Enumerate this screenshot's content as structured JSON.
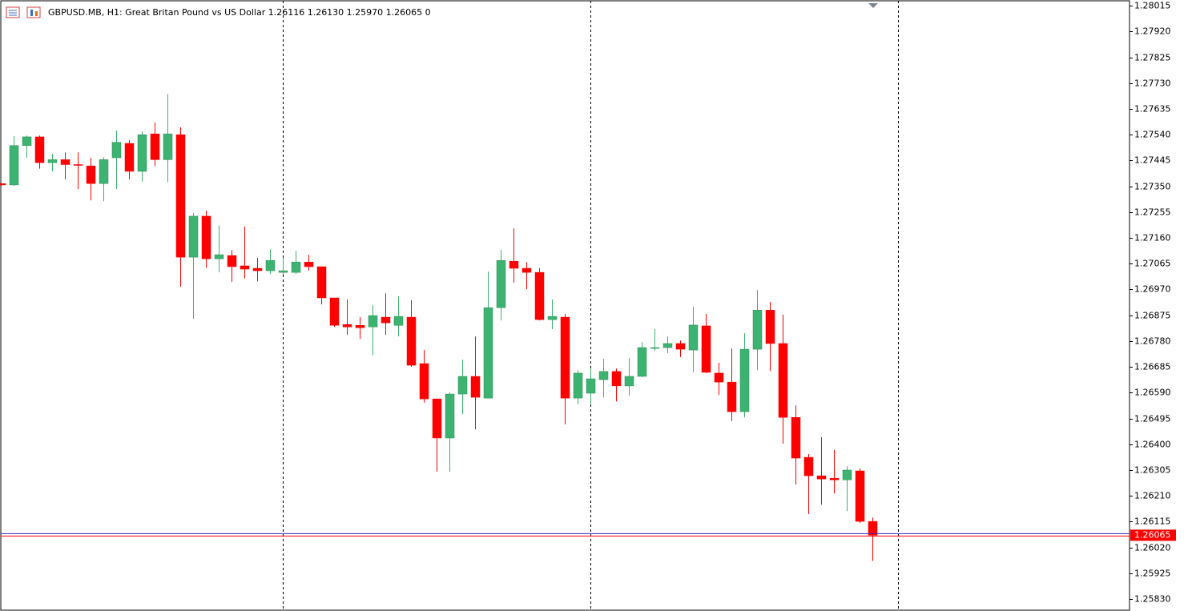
{
  "chart_data": {
    "type": "candlestick",
    "title": "GBPUSD.MB, H1:  Great Britan Pound vs US Dollar  1.26116 1.26130 1.25970 1.26065  0",
    "bull_color": "#3cb371",
    "bear_color": "#ff0000",
    "ylim": [
      1.25786,
      1.28036
    ],
    "yticks": [
      1.28015,
      {
        "value": 1.2792,
        "label": "1.27920"
      },
      1.27825,
      {
        "value": 1.2773,
        "label": "1.27730"
      },
      1.27635,
      {
        "value": 1.2754,
        "label": "1.27540"
      },
      1.27445,
      {
        "value": 1.2735,
        "label": "1.27350"
      },
      1.27255,
      {
        "value": 1.2716,
        "label": "1.27160"
      },
      1.27065,
      {
        "value": 1.2697,
        "label": "1.26970"
      },
      1.26875,
      {
        "value": 1.2678,
        "label": "1.26780"
      },
      1.26685,
      {
        "value": 1.2659,
        "label": "1.26590"
      },
      1.26495,
      {
        "value": 1.264,
        "label": "1.26400"
      },
      1.26305,
      {
        "value": 1.2621,
        "label": "1.26210"
      },
      1.26115,
      {
        "value": 1.2602,
        "label": "1.26020"
      },
      1.25925,
      {
        "value": 1.2583,
        "label": "1.25830"
      }
    ],
    "current_price": 1.26065,
    "open": [
      1.2736,
      1.27355,
      1.275,
      1.27532,
      1.27437,
      1.27448,
      1.2743,
      1.27425,
      1.2736,
      1.27455,
      1.27508,
      1.27405,
      1.27543,
      1.27448,
      1.2754,
      1.27089,
      1.2724,
      1.27083,
      1.27095,
      1.27057,
      1.27048,
      1.27039,
      1.27033,
      1.27033,
      1.27071,
      1.27054,
      1.26939,
      1.26841,
      1.26838,
      1.26832,
      1.26868,
      1.26838,
      1.26868,
      1.26697,
      1.26567,
      1.26423,
      1.26585,
      1.2665,
      1.2657,
      1.26903,
      1.27074,
      1.27048,
      1.27033,
      1.26859,
      1.26868,
      1.2657,
      1.26588,
      1.26638,
      1.26668,
      1.26615,
      1.2665,
      1.26753,
      1.26756,
      1.26771,
      1.26747,
      1.26836,
      1.26662,
      1.26629,
      1.2652,
      1.2675,
      1.26894,
      1.26771,
      1.26499,
      1.26352,
      1.26284,
      1.26275,
      1.26269,
      1.26302,
      1.26116
    ],
    "high": [
      1.27362,
      1.27535,
      1.27537,
      1.27537,
      1.2747,
      1.27475,
      1.27475,
      1.27455,
      1.27457,
      1.27555,
      1.2752,
      1.27552,
      1.27585,
      1.2769,
      1.27567,
      1.27252,
      1.2726,
      1.27205,
      1.27115,
      1.27202,
      1.27086,
      1.27118,
      1.27086,
      1.27113,
      1.27098,
      1.27054,
      1.26939,
      1.26933,
      1.26868,
      1.26912,
      1.26956,
      1.26944,
      1.2693,
      1.26747,
      1.26567,
      1.26591,
      1.26712,
      1.26797,
      1.27036,
      1.27116,
      1.27195,
      1.27071,
      1.27048,
      1.26933,
      1.2688,
      1.26673,
      1.26679,
      1.26715,
      1.26679,
      1.26718,
      1.26777,
      1.26824,
      1.26797,
      1.26782,
      1.26906,
      1.2688,
      1.267,
      1.26753,
      1.26809,
      1.26968,
      1.26924,
      1.26877,
      1.26543,
      1.26364,
      1.26426,
      1.26379,
      1.26319,
      1.26311,
      1.2613
    ],
    "low": [
      1.2735,
      1.27352,
      1.27455,
      1.27415,
      1.27405,
      1.27375,
      1.2734,
      1.27298,
      1.27295,
      1.2734,
      1.27375,
      1.27367,
      1.27425,
      1.27365,
      1.2698,
      1.26862,
      1.2705,
      1.27033,
      1.26998,
      1.2701,
      1.27,
      1.27027,
      1.27024,
      1.27027,
      1.27039,
      1.26915,
      1.26832,
      1.26803,
      1.26788,
      1.26729,
      1.26803,
      1.26797,
      1.26685,
      1.26553,
      1.26299,
      1.26299,
      1.26511,
      1.26455,
      1.2657,
      1.26856,
      1.26995,
      1.26971,
      1.26856,
      1.26824,
      1.26473,
      1.26547,
      1.26547,
      1.26573,
      1.26558,
      1.26579,
      1.26647,
      1.26744,
      1.26735,
      1.26721,
      1.26665,
      1.26662,
      1.26582,
      1.26485,
      1.26499,
      1.26673,
      1.2667,
      1.26402,
      1.26252,
      1.26143,
      1.26178,
      1.26219,
      1.26154,
      1.2611,
      1.2597
    ],
    "close": [
      1.27355,
      1.275,
      1.27532,
      1.27437,
      1.27448,
      1.2743,
      1.27427,
      1.2736,
      1.27448,
      1.27512,
      1.27405,
      1.2754,
      1.27448,
      1.27543,
      1.27089,
      1.2724,
      1.27083,
      1.27098,
      1.27054,
      1.27045,
      1.27039,
      1.27077,
      1.27039,
      1.27071,
      1.27054,
      1.26939,
      1.26838,
      1.26832,
      1.26829,
      1.26874,
      1.26847,
      1.26871,
      1.26691,
      1.26567,
      1.26423,
      1.26585,
      1.2665,
      1.26573,
      1.26903,
      1.27077,
      1.27048,
      1.27033,
      1.26859,
      1.26871,
      1.2657,
      1.26662,
      1.26641,
      1.26668,
      1.26615,
      1.2665,
      1.26756,
      1.26756,
      1.26771,
      1.2675,
      1.26839,
      1.26665,
      1.26629,
      1.2652,
      1.2675,
      1.26894,
      1.26771,
      1.26499,
      1.26349,
      1.26284,
      1.26272,
      1.26269,
      1.26305,
      1.26116,
      1.26065
    ]
  }
}
